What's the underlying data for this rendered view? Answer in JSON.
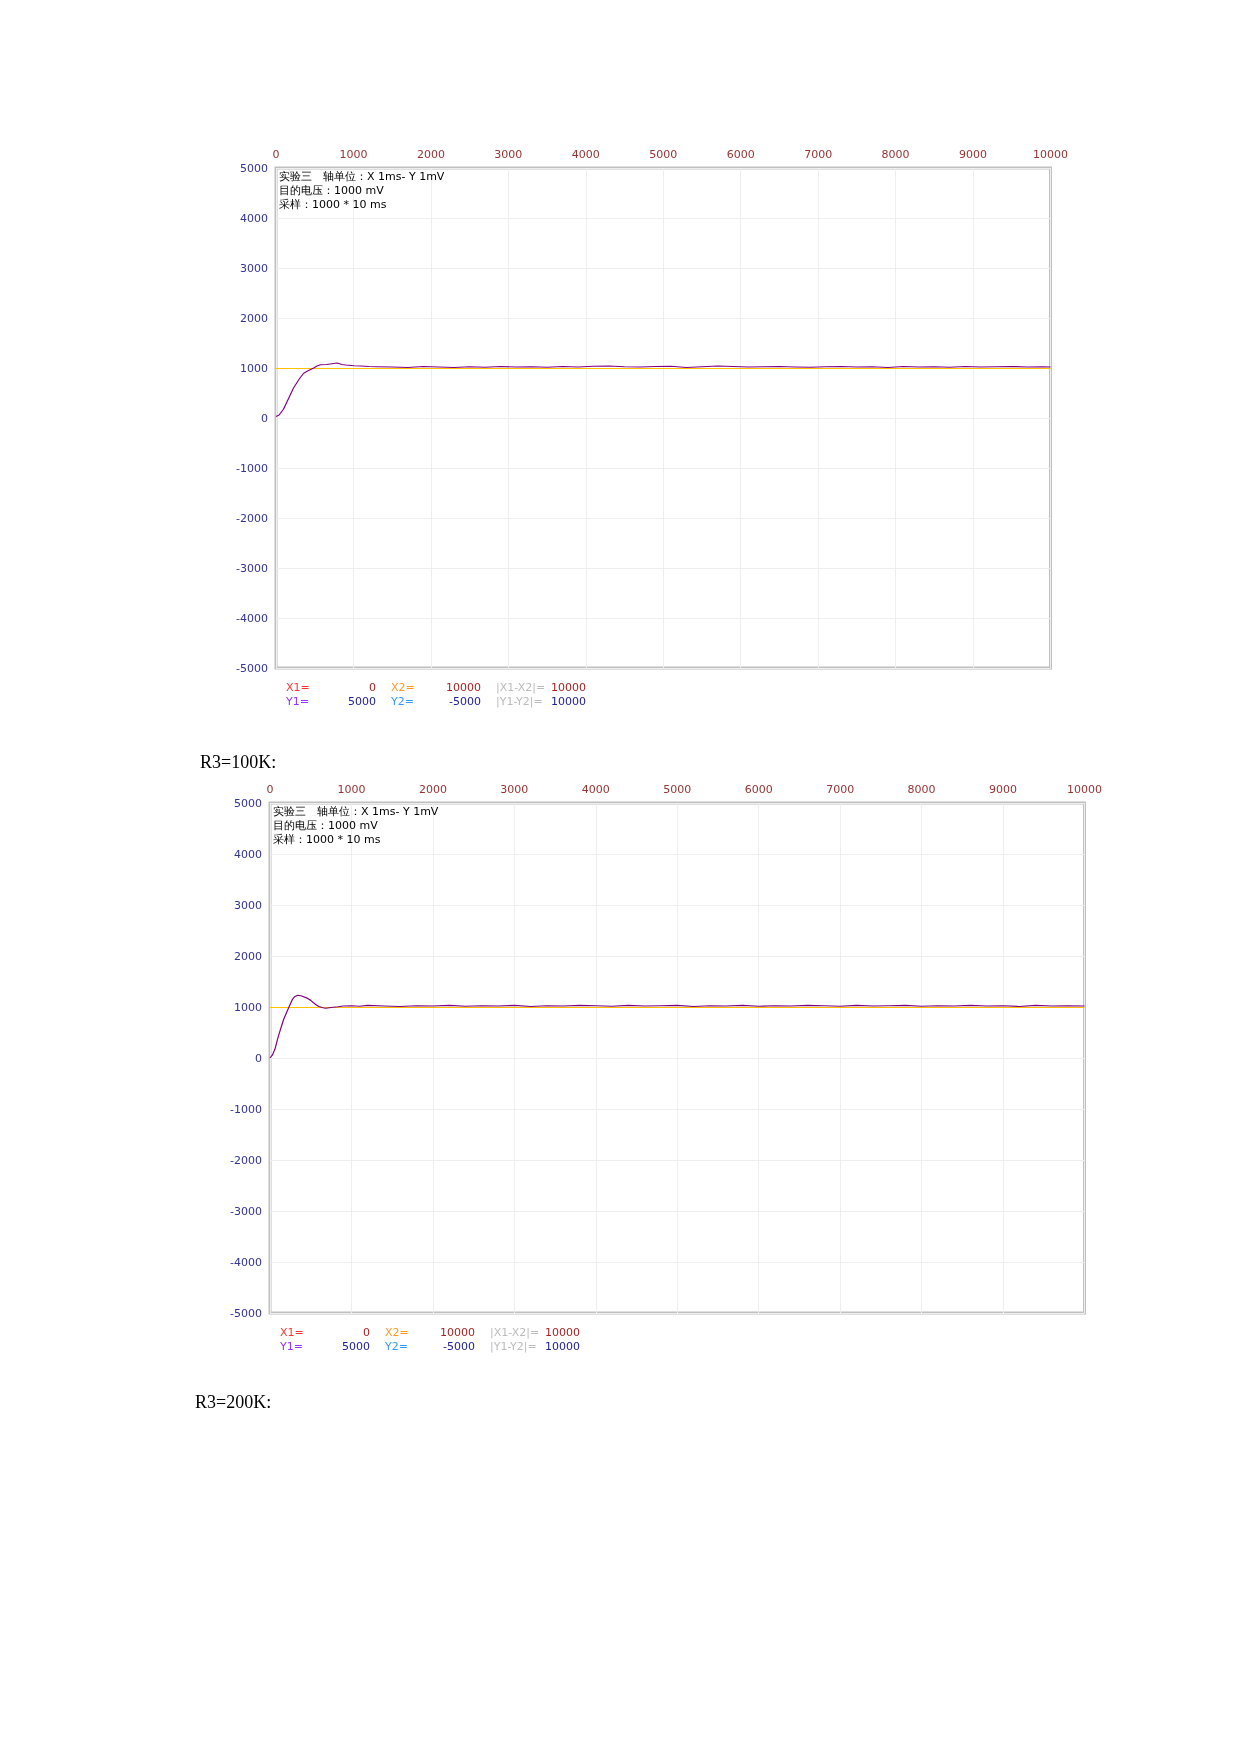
{
  "chart_data": [
    {
      "type": "line",
      "annotations": [
        "实验三　轴单位：X 1ms- Y 1mV",
        "目的电压：1000 mV",
        "采样：1000 * 10 ms",
        "X1=",
        "0",
        "X2=",
        "10000",
        "|X1-X2|=",
        "10000",
        "Y1=",
        "5000",
        "Y2=",
        "-5000",
        "|Y1-Y2|=",
        "10000"
      ],
      "xlim": [
        0,
        10000
      ],
      "xticks": [
        0,
        1000,
        2000,
        3000,
        4000,
        5000,
        6000,
        7000,
        8000,
        9000,
        10000
      ],
      "ylim": [
        -5000,
        5000
      ],
      "yticks": [
        -5000,
        -4000,
        -3000,
        -2000,
        -1000,
        0,
        1000,
        2000,
        3000,
        4000,
        5000
      ],
      "grid": true,
      "marker": "none",
      "line_style": "solid",
      "ref_lines": [
        {
          "axis": "y",
          "value": 1000,
          "color": "#ffc000"
        }
      ],
      "series": [
        {
          "color": "#800080",
          "x": [
            0,
            40,
            96,
            150,
            226,
            300,
            357,
            420,
            487,
            530,
            574,
            650,
            700,
            791,
            850,
            900,
            1009,
            1100,
            1200,
            1300,
            1500,
            1700,
            1900,
            2100,
            2300,
            2500,
            2700,
            2900,
            3100,
            3300,
            3500,
            3700,
            3900,
            4100,
            4300,
            4500,
            4700,
            4900,
            5100,
            5300,
            5500,
            5700,
            5900,
            6100,
            6300,
            6500,
            6700,
            6900,
            7100,
            7300,
            7500,
            7700,
            7900,
            8100,
            8300,
            8500,
            8700,
            8900,
            9100,
            9300,
            9500,
            9700,
            9900,
            10000
          ],
          "values": [
            30,
            60,
            175,
            350,
            600,
            780,
            895,
            950,
            1000,
            1040,
            1065,
            1070,
            1080,
            1100,
            1070,
            1060,
            1045,
            1040,
            1030,
            1025,
            1020,
            1010,
            1030,
            1020,
            1010,
            1025,
            1015,
            1030,
            1020,
            1025,
            1015,
            1030,
            1020,
            1035,
            1040,
            1025,
            1020,
            1030,
            1035,
            1010,
            1025,
            1040,
            1030,
            1020,
            1025,
            1030,
            1020,
            1015,
            1025,
            1030,
            1020,
            1025,
            1010,
            1030,
            1020,
            1025,
            1015,
            1030,
            1020,
            1025,
            1030,
            1020,
            1025,
            1020
          ]
        }
      ]
    },
    {
      "type": "line",
      "title": "R3=100K:",
      "annotations": [
        "实验三　轴单位：X 1ms- Y 1mV",
        "目的电压：1000 mV",
        "采样：1000 * 10 ms",
        "X1=",
        "0",
        "X2=",
        "10000",
        "|X1-X2|=",
        "10000",
        "Y1=",
        "5000",
        "Y2=",
        "-5000",
        "|Y1-Y2|=",
        "10000",
        "R3=200K:"
      ],
      "xlim": [
        0,
        10000
      ],
      "xticks": [
        0,
        1000,
        2000,
        3000,
        4000,
        5000,
        6000,
        7000,
        8000,
        9000,
        10000
      ],
      "ylim": [
        -5000,
        5000
      ],
      "yticks": [
        -5000,
        -4000,
        -3000,
        -2000,
        -1000,
        0,
        1000,
        2000,
        3000,
        4000,
        5000
      ],
      "grid": true,
      "marker": "none",
      "line_style": "solid",
      "ref_lines": [
        {
          "axis": "y",
          "value": 1000,
          "color": "#ffc000"
        }
      ],
      "series": [
        {
          "color": "#800080",
          "x": [
            0,
            30,
            60,
            103,
            168,
            233,
            276,
            300,
            340,
            380,
            448,
            500,
            534,
            570,
            599,
            650,
            685,
            750,
            836,
            900,
            1000,
            1100,
            1200,
            1400,
            1600,
            1800,
            2000,
            2200,
            2400,
            2600,
            2800,
            3000,
            3200,
            3400,
            3600,
            3800,
            4000,
            4200,
            4400,
            4600,
            4800,
            5000,
            5200,
            5400,
            5600,
            5800,
            6000,
            6200,
            6400,
            6600,
            6800,
            7000,
            7200,
            7400,
            7600,
            7800,
            8000,
            8200,
            8400,
            8600,
            8800,
            9000,
            9200,
            9400,
            9600,
            9800,
            10000
          ],
          "values": [
            0,
            60,
            170,
            430,
            760,
            1000,
            1150,
            1200,
            1230,
            1220,
            1180,
            1130,
            1085,
            1040,
            1010,
            985,
            975,
            990,
            1005,
            1020,
            1025,
            1015,
            1030,
            1020,
            1010,
            1025,
            1020,
            1030,
            1015,
            1025,
            1020,
            1030,
            1010,
            1025,
            1020,
            1030,
            1025,
            1015,
            1030,
            1020,
            1025,
            1030,
            1010,
            1025,
            1020,
            1030,
            1015,
            1025,
            1020,
            1030,
            1025,
            1015,
            1030,
            1020,
            1025,
            1030,
            1015,
            1025,
            1020,
            1030,
            1020,
            1025,
            1010,
            1030,
            1020,
            1025,
            1020
          ]
        }
      ]
    }
  ]
}
